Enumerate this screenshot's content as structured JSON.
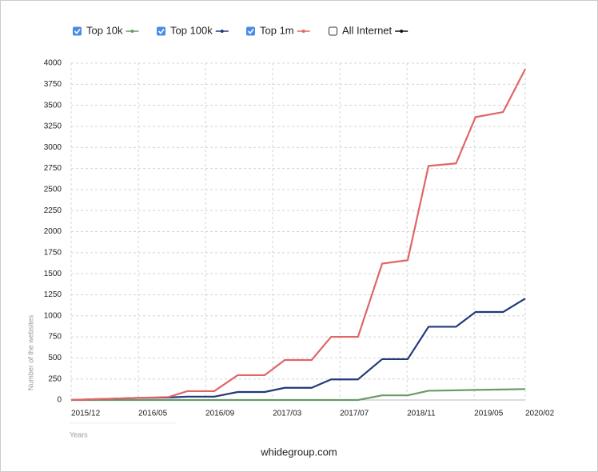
{
  "chart_data": {
    "type": "line",
    "footer": "whidegroup.com",
    "y_label": "Number of the websites",
    "x_label": "Years",
    "x": [
      0,
      1,
      1.45,
      1.73,
      2.13,
      2.48,
      2.88,
      3.18,
      3.58,
      3.87,
      4.27,
      4.63,
      5.01,
      5.32,
      5.73,
      6.02,
      6.43,
      6.76
    ],
    "xlim": [
      0,
      6.76
    ],
    "xticks": [
      {
        "value": 0,
        "label": "2015/12"
      },
      {
        "value": 1,
        "label": "2016/05"
      },
      {
        "value": 2,
        "label": "2016/09"
      },
      {
        "value": 3,
        "label": "2017/03"
      },
      {
        "value": 4,
        "label": "2017/07"
      },
      {
        "value": 5,
        "label": "2018/11"
      },
      {
        "value": 6,
        "label": "2019/05"
      },
      {
        "value": 6.76,
        "label": "2020/02"
      }
    ],
    "ylim": [
      0,
      4000
    ],
    "yticks": [
      0,
      250,
      500,
      750,
      1000,
      1250,
      1500,
      1750,
      2000,
      2250,
      2500,
      2750,
      3000,
      3250,
      3500,
      3750,
      4000
    ],
    "grid": true,
    "series": [
      {
        "name": "Top 10k",
        "color": "#6a9b6a",
        "visible": true,
        "values": [
          0,
          0,
          0,
          0,
          0,
          0,
          0,
          0,
          0,
          0,
          0,
          55,
          55,
          110,
          115,
          120,
          125,
          130
        ]
      },
      {
        "name": "Top 100k",
        "color": "#233a7a",
        "visible": true,
        "values": [
          0,
          25,
          30,
          40,
          40,
          95,
          95,
          145,
          145,
          245,
          245,
          485,
          485,
          870,
          870,
          1045,
          1045,
          1205
        ]
      },
      {
        "name": "Top 1m",
        "color": "#e06666",
        "visible": true,
        "values": [
          0,
          25,
          35,
          105,
          105,
          295,
          295,
          475,
          475,
          750,
          750,
          1620,
          1660,
          2780,
          2810,
          3360,
          3420,
          3930
        ]
      },
      {
        "name": "All Internet",
        "color": "#111111",
        "visible": false
      }
    ]
  }
}
